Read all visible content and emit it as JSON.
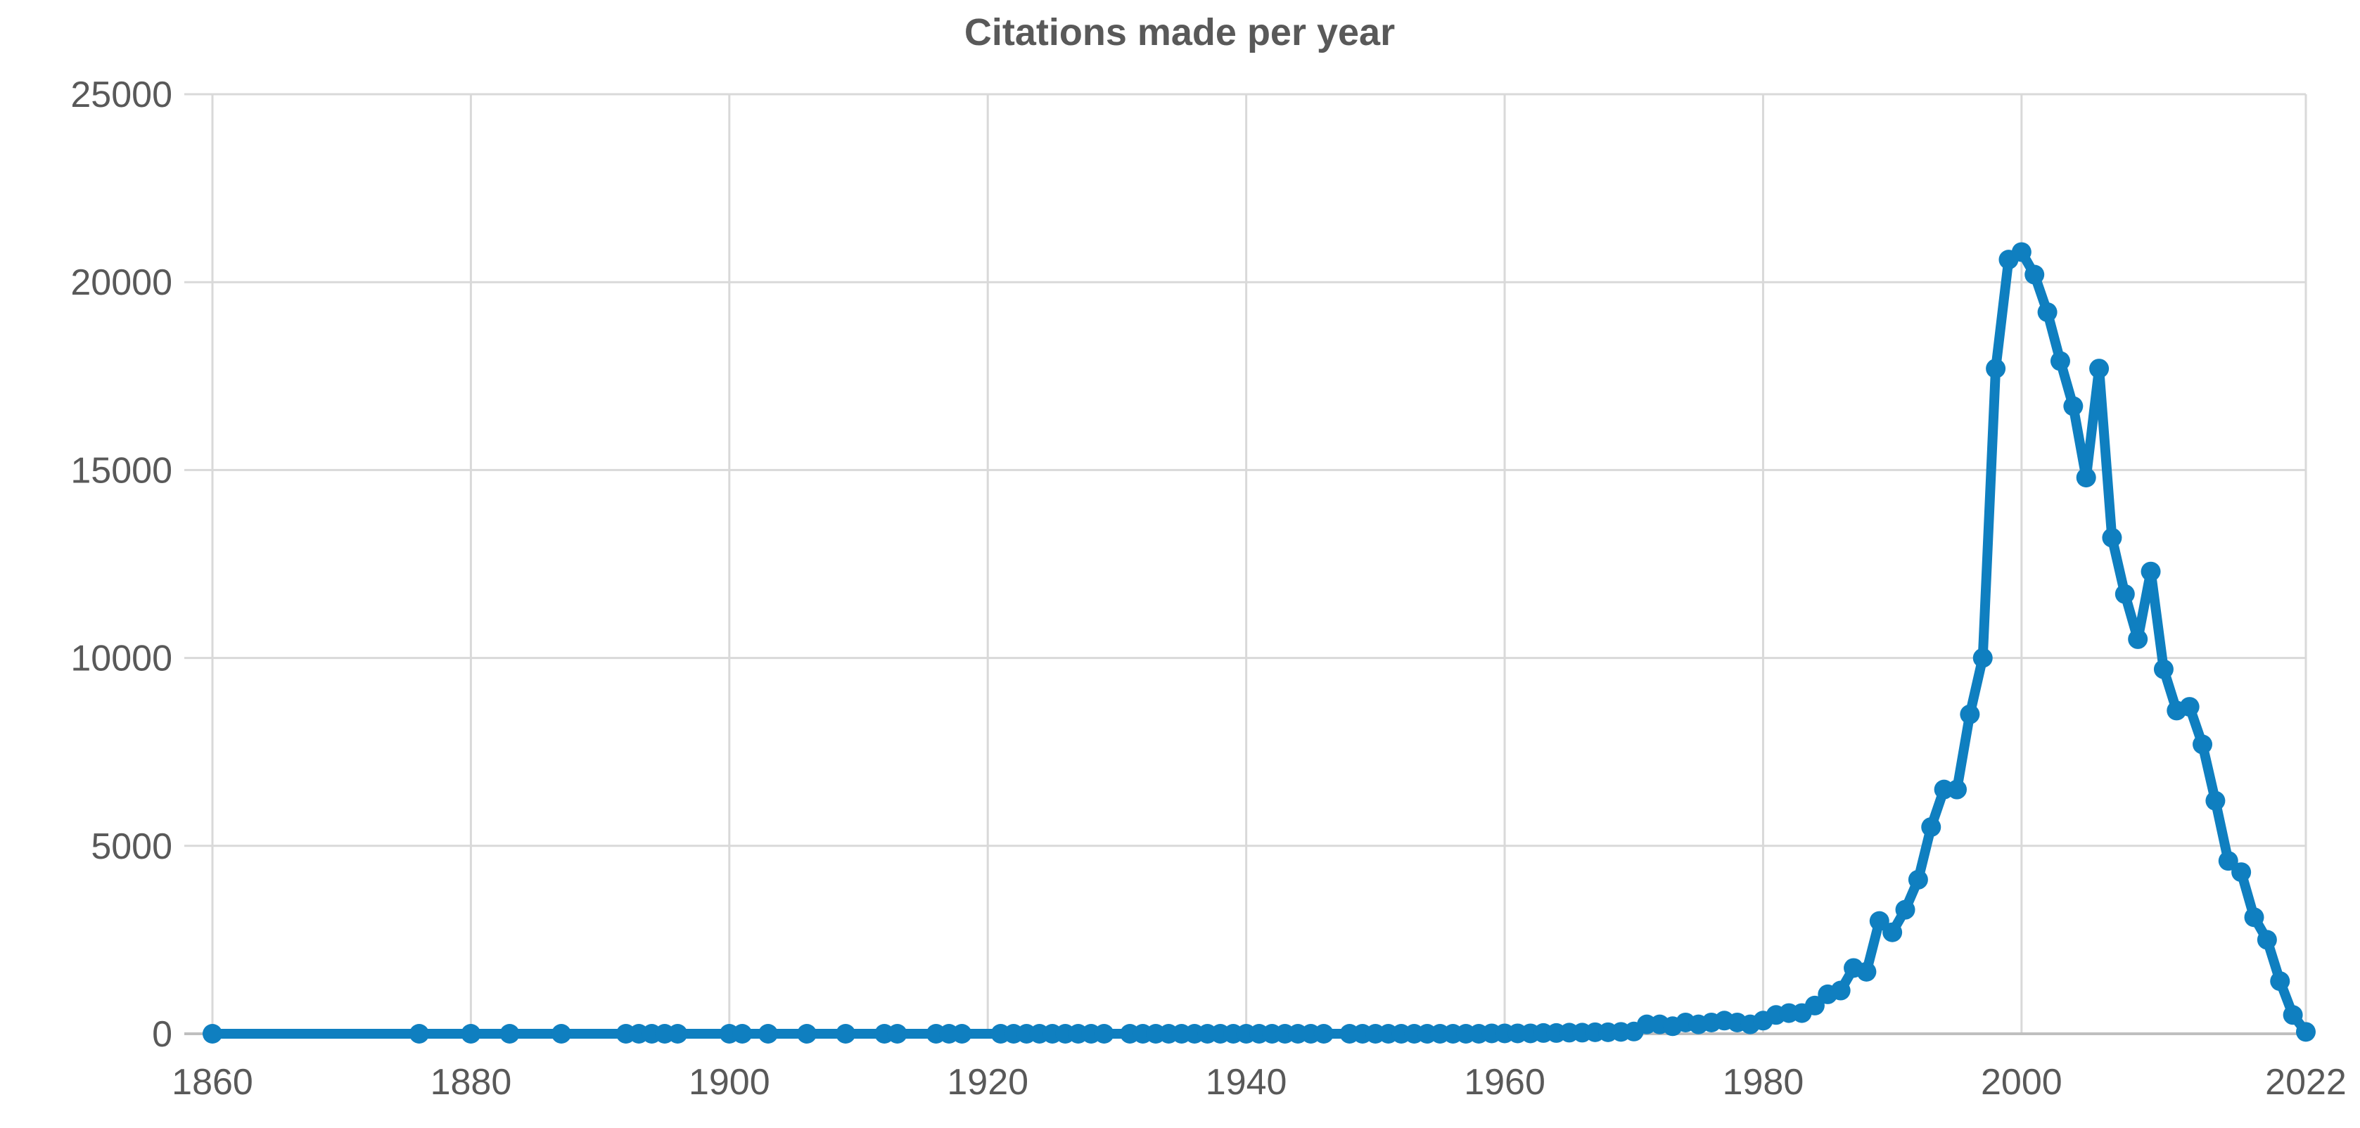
{
  "chart_data": {
    "type": "line",
    "title": "Citations made per year",
    "xlabel": "",
    "ylabel": "",
    "xlim": [
      1860,
      2022
    ],
    "ylim": [
      0,
      25000
    ],
    "x_ticks": [
      1860,
      1880,
      1900,
      1920,
      1940,
      1960,
      1980,
      2000,
      2022
    ],
    "y_ticks": [
      0,
      5000,
      10000,
      15000,
      20000,
      25000
    ],
    "grid": true,
    "colors": {
      "series": "#0f7fc0",
      "grid": "#d9d9d9",
      "text": "#595959"
    },
    "series": [
      {
        "x": [
          1860,
          1876,
          1880,
          1883,
          1887,
          1892,
          1893,
          1894,
          1895,
          1896,
          1900,
          1901,
          1903,
          1906,
          1909,
          1912,
          1913,
          1916,
          1917,
          1918,
          1921,
          1922,
          1923,
          1924,
          1925,
          1926,
          1927,
          1928,
          1929,
          1931,
          1932,
          1933,
          1934,
          1935,
          1936,
          1937,
          1938,
          1939,
          1940,
          1941,
          1942,
          1943,
          1944,
          1945,
          1946,
          1948,
          1949,
          1950,
          1951,
          1952,
          1953,
          1954,
          1955,
          1956,
          1957,
          1958,
          1959,
          1960,
          1961,
          1962,
          1963,
          1964,
          1965,
          1966,
          1967,
          1968,
          1969,
          1970,
          1971,
          1972,
          1973,
          1974,
          1975,
          1976,
          1977,
          1978,
          1979,
          1980,
          1981,
          1982,
          1983,
          1984,
          1985,
          1986,
          1987,
          1988,
          1989,
          1990,
          1991,
          1992,
          1993,
          1994,
          1995,
          1996,
          1997,
          1998,
          1999,
          2000,
          2001,
          2002,
          2003,
          2004,
          2005,
          2006,
          2007,
          2008,
          2009,
          2010,
          2011,
          2012,
          2013,
          2014,
          2015,
          2016,
          2017,
          2018,
          2019,
          2020,
          2021,
          2022
        ],
        "values": [
          0,
          0,
          0,
          0,
          0,
          0,
          0,
          0,
          0,
          0,
          0,
          0,
          0,
          0,
          0,
          0,
          0,
          0,
          0,
          0,
          0,
          0,
          0,
          0,
          0,
          0,
          0,
          0,
          0,
          0,
          0,
          0,
          0,
          0,
          0,
          0,
          0,
          0,
          0,
          0,
          0,
          0,
          0,
          0,
          0,
          0,
          0,
          0,
          0,
          0,
          0,
          0,
          0,
          0,
          0,
          0,
          10,
          10,
          10,
          10,
          20,
          20,
          30,
          30,
          40,
          40,
          50,
          60,
          250,
          250,
          200,
          300,
          250,
          300,
          350,
          300,
          250,
          350,
          500,
          550,
          550,
          750,
          1050,
          1150,
          1750,
          1650,
          3000,
          2700,
          3300,
          4100,
          5500,
          6500,
          6500,
          8500,
          10000,
          17700,
          20600,
          20800,
          20200,
          19200,
          17900,
          16700,
          14800,
          17700,
          13200,
          11700,
          10500,
          12300,
          9700,
          8600,
          8700,
          7700,
          6200,
          4600,
          4300,
          3100,
          2500,
          1400,
          500,
          50
        ]
      }
    ]
  }
}
